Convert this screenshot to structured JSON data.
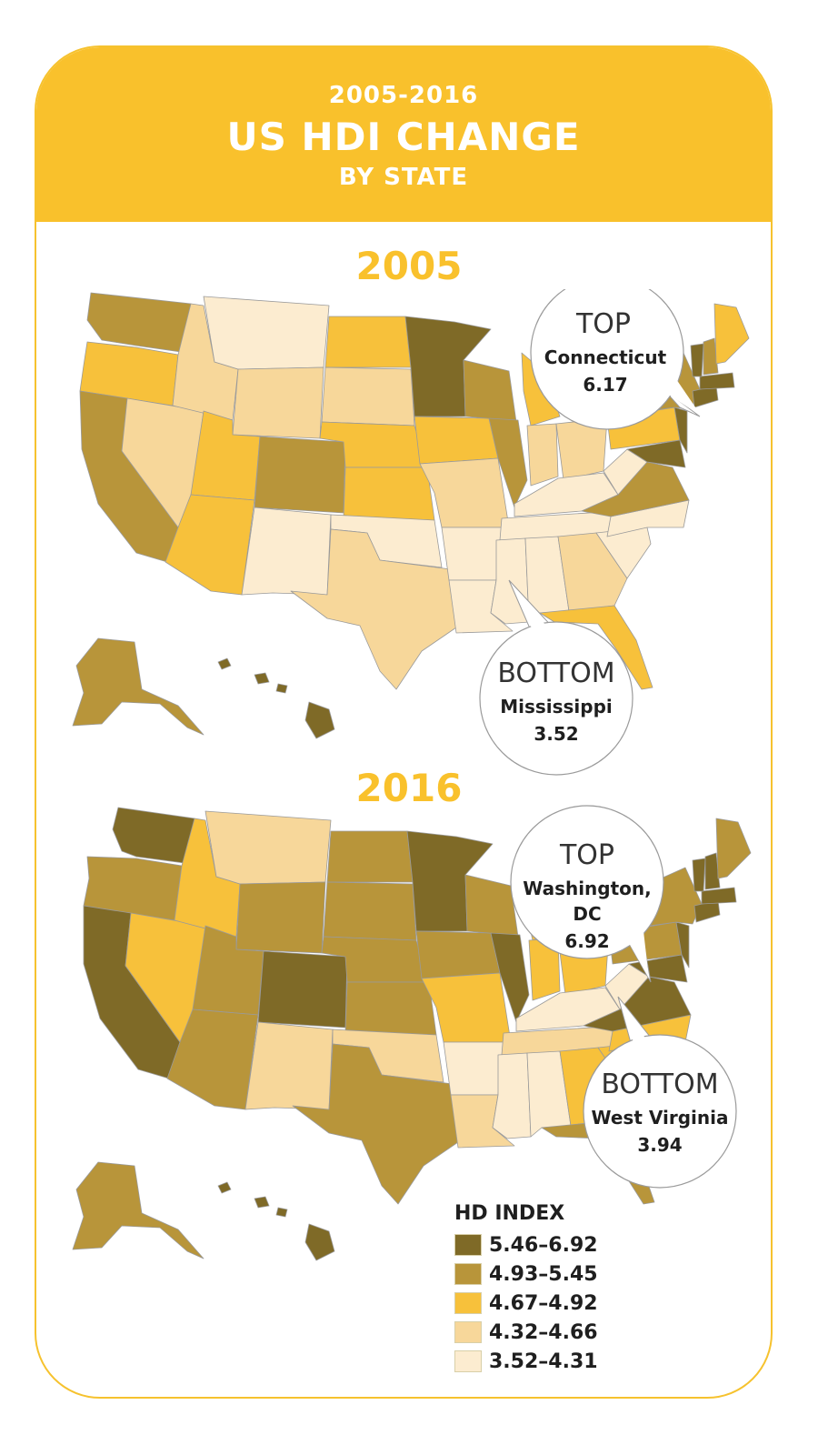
{
  "header": {
    "range": "2005-2016",
    "title": "US HDI CHANGE",
    "subtitle": "BY STATE"
  },
  "palette": {
    "c5": "#7f6a27",
    "c4": "#b8953a",
    "c3": "#f7c13b",
    "c2": "#f7d79a",
    "c1": "#fcecd0",
    "stroke": "#9a9a9a"
  },
  "maps": [
    {
      "year": "2005",
      "top": {
        "label": "TOP",
        "name": "Connecticut",
        "value": "6.17"
      },
      "bottom": {
        "label": "BOTTOM",
        "name": "Mississippi",
        "value": "3.52"
      }
    },
    {
      "year": "2016",
      "top": {
        "label": "TOP",
        "name_line1": "Washington,",
        "name_line2": "DC",
        "value": "6.92"
      },
      "bottom": {
        "label": "BOTTOM",
        "name": "West Virginia",
        "value": "3.94"
      }
    }
  ],
  "legend": {
    "title": "HD INDEX",
    "items": [
      {
        "label": "5.46–6.92",
        "color": "#7f6a27"
      },
      {
        "label": "4.93–5.45",
        "color": "#b8953a"
      },
      {
        "label": "4.67–4.92",
        "color": "#f7c13b"
      },
      {
        "label": "4.32–4.66",
        "color": "#f7d79a"
      },
      {
        "label": "3.52–4.31",
        "color": "#fcecd0"
      }
    ]
  }
}
